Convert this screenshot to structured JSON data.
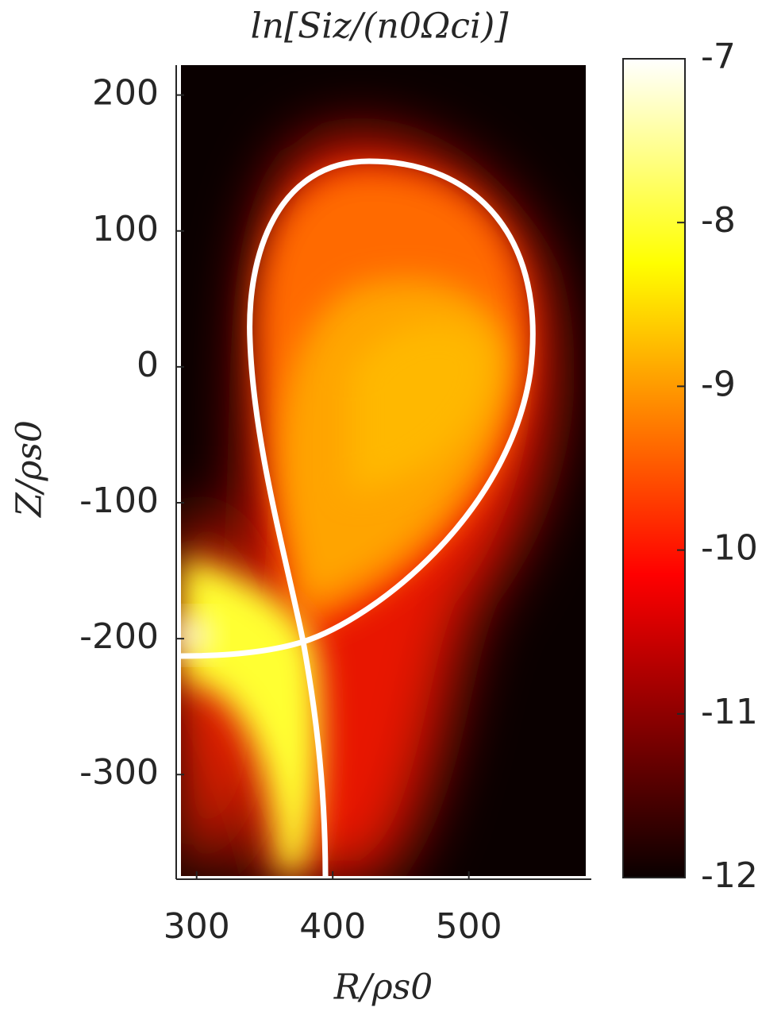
{
  "chart_data": {
    "type": "heatmap",
    "title": "ln[Siz/(n0Ωci)]",
    "x_label": "R/ρs0",
    "y_label": "Z/ρs0",
    "xlim": [
      285,
      590
    ],
    "xticks": [
      300,
      400,
      500
    ],
    "ylim": [
      -377,
      222
    ],
    "yticks": [
      200,
      100,
      0,
      -100,
      -200,
      -300
    ],
    "colorbar": {
      "clim": [
        -12,
        -7
      ],
      "ticks": [
        -7,
        -8,
        -9,
        -10,
        -11,
        -12
      ],
      "colormap": "hot"
    }
  }
}
